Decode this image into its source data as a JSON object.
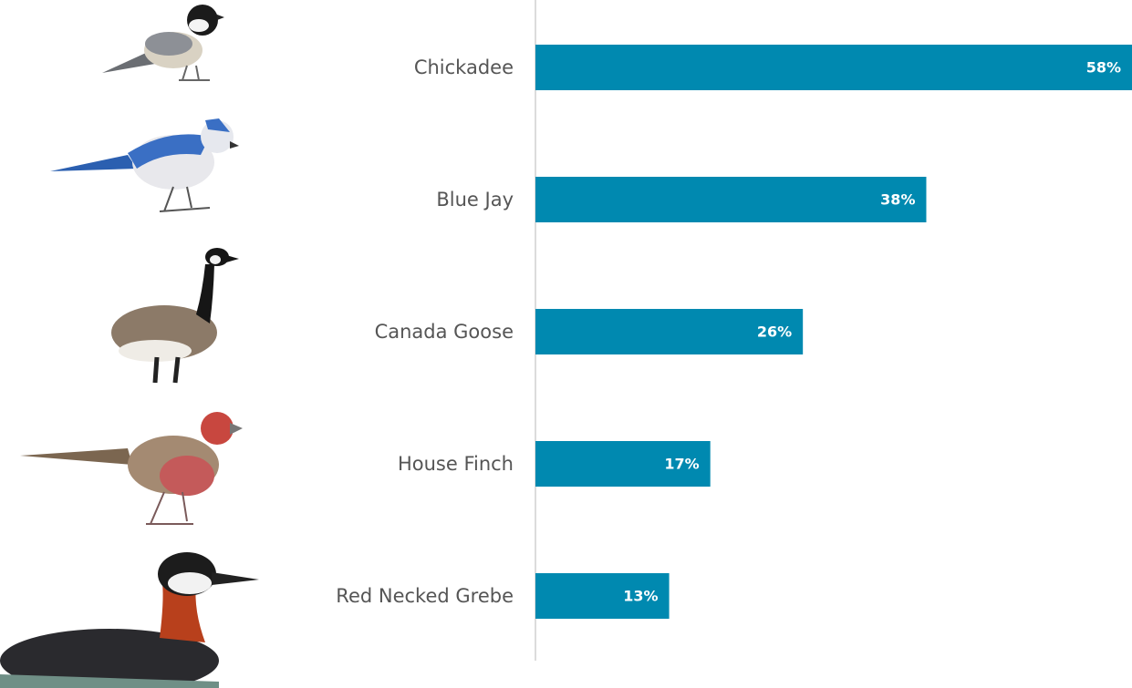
{
  "chart_data": {
    "type": "bar",
    "orientation": "horizontal",
    "categories": [
      "Chickadee",
      "Blue Jay",
      "Canada Goose",
      "House Finch",
      "Red Necked Grebe"
    ],
    "values": [
      58,
      38,
      26,
      17,
      13
    ],
    "value_labels": [
      "58%",
      "38%",
      "26%",
      "17%",
      "13%"
    ],
    "color": "#0089b0"
  }
}
